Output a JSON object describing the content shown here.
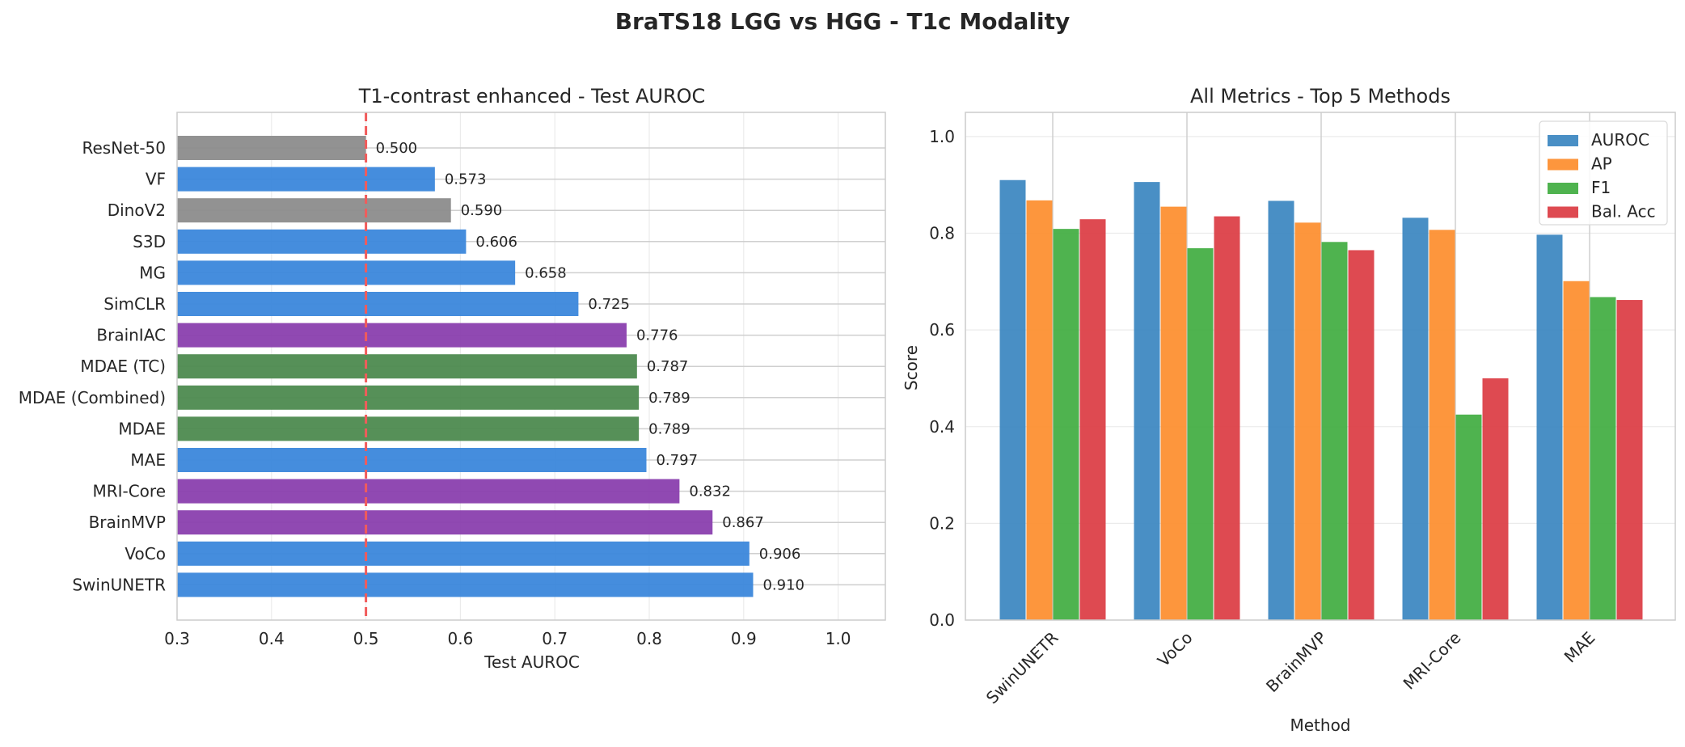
{
  "figure_title": "BraTS18 LGG vs HGG - T1c Modality",
  "chart_data": [
    {
      "type": "bar",
      "orientation": "horizontal",
      "title": "T1-contrast enhanced - Test AUROC",
      "xlabel": "Test AUROC",
      "ylabel": "",
      "xlim": [
        0.3,
        1.05
      ],
      "xticks": [
        "0.3",
        "0.4",
        "0.5",
        "0.6",
        "0.7",
        "0.8",
        "0.9",
        "1.0"
      ],
      "grid": true,
      "reference_line": {
        "x": 0.5,
        "style": "dashed",
        "color": "#f15b5b"
      },
      "categories": [
        "ResNet-50",
        "VF",
        "DinoV2",
        "S3D",
        "MG",
        "SimCLR",
        "BrainIAC",
        "MDAE (TC)",
        "MDAE (Combined)",
        "MDAE",
        "MAE",
        "MRI-Core",
        "BrainMVP",
        "VoCo",
        "SwinUNETR"
      ],
      "values": [
        0.5,
        0.573,
        0.59,
        0.606,
        0.658,
        0.725,
        0.776,
        0.787,
        0.789,
        0.789,
        0.797,
        0.832,
        0.867,
        0.906,
        0.91
      ],
      "value_labels": [
        "0.500",
        "0.573",
        "0.590",
        "0.606",
        "0.658",
        "0.725",
        "0.776",
        "0.787",
        "0.789",
        "0.789",
        "0.797",
        "0.832",
        "0.867",
        "0.906",
        "0.910"
      ],
      "colors": [
        "#8c8c8c",
        "#3b87db",
        "#8c8c8c",
        "#3b87db",
        "#3b87db",
        "#3b87db",
        "#8a3fae",
        "#4d8a4f",
        "#4d8a4f",
        "#4d8a4f",
        "#3b87db",
        "#8a3fae",
        "#8a3fae",
        "#3b87db",
        "#3b87db"
      ]
    },
    {
      "type": "bar",
      "orientation": "vertical",
      "title": "All Metrics - Top 5 Methods",
      "xlabel": "Method",
      "ylabel": "Score",
      "ylim": [
        0,
        1.05
      ],
      "yticks": [
        "0.0",
        "0.2",
        "0.4",
        "0.6",
        "0.8",
        "1.0"
      ],
      "grid": true,
      "legend_position": "top-right",
      "categories": [
        "SwinUNETR",
        "VoCo",
        "BrainMVP",
        "MRI-Core",
        "MAE"
      ],
      "series": [
        {
          "name": "AUROC",
          "color": "#3a86c0",
          "values": [
            0.91,
            0.906,
            0.867,
            0.832,
            0.797
          ]
        },
        {
          "name": "AP",
          "color": "#fd8d2c",
          "values": [
            0.868,
            0.855,
            0.822,
            0.807,
            0.701
          ]
        },
        {
          "name": "F1",
          "color": "#40ac40",
          "values": [
            0.809,
            0.769,
            0.782,
            0.425,
            0.668
          ]
        },
        {
          "name": "Bal. Acc",
          "color": "#db3b42",
          "values": [
            0.829,
            0.835,
            0.765,
            0.5,
            0.662
          ]
        }
      ]
    }
  ]
}
